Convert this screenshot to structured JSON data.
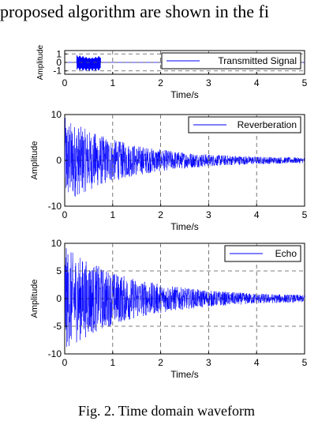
{
  "top_text": "proposed algorithm are shown in the fi",
  "figure_caption": "Fig. 2.   Time domain waveform",
  "chart_data": [
    {
      "type": "line",
      "name": "transmitted",
      "xlabel": "Time/s",
      "ylabel": "Amplitude",
      "xlim": [
        0,
        5
      ],
      "ylim": [
        -1.4,
        1.4
      ],
      "xticks": [
        "0",
        "1",
        "2",
        "3",
        "4",
        "5"
      ],
      "yticks": [
        "1",
        "0",
        "-1"
      ],
      "legend": "Transmitted Signal",
      "legend_position": "top-right",
      "grid": true,
      "pulse_start": 0.25,
      "pulse_end": 0.75,
      "pulse_amplitude": 1
    },
    {
      "type": "line",
      "name": "reverberation",
      "xlabel": "Time/s",
      "ylabel": "Amplitude",
      "xlim": [
        0,
        5
      ],
      "ylim": [
        -10,
        10
      ],
      "xticks": [
        "0",
        "1",
        "2",
        "3",
        "4",
        "5"
      ],
      "yticks": [
        "10",
        "0",
        "-10"
      ],
      "legend": "Reverberation",
      "legend_position": "top-right",
      "grid": true,
      "peak_amplitude": 9,
      "decay_rate": 0.75
    },
    {
      "type": "line",
      "name": "echo",
      "xlabel": "Time/s",
      "ylabel": "Amplitude",
      "xlim": [
        0,
        5
      ],
      "ylim": [
        -10,
        10
      ],
      "xticks": [
        "0",
        "1",
        "2",
        "3",
        "4",
        "5"
      ],
      "yticks": [
        "10",
        "5",
        "0",
        "-5",
        "-10"
      ],
      "legend": "Echo",
      "legend_position": "top-right",
      "grid": true,
      "peak_amplitude": 9,
      "decay_rate": 0.7
    }
  ],
  "colors": {
    "series": "#0000ff",
    "grid": "#555555",
    "axis": "#000000"
  }
}
